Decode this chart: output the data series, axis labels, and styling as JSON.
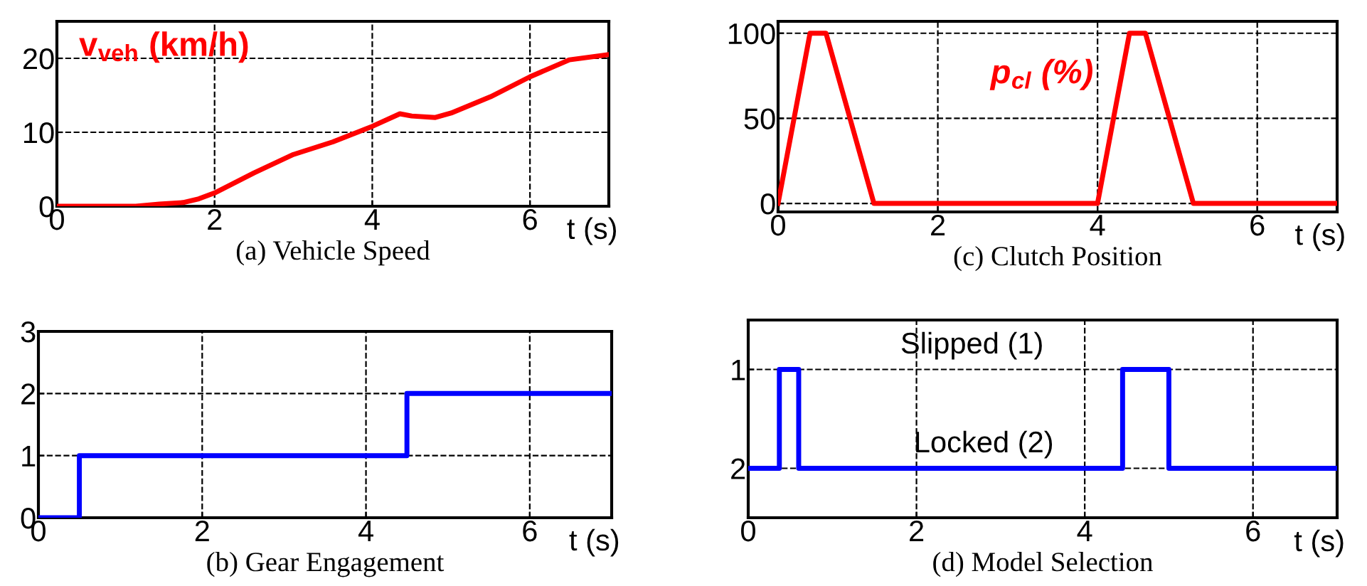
{
  "chart_data": [
    {
      "type": "line",
      "title": "(a) Vehicle Speed",
      "xlabel": "t (s)",
      "annotations": [
        "v$_{veh}$ (km/h)"
      ],
      "series": [
        {
          "color": "#ff0000",
          "x": [
            0,
            1,
            1.3,
            1.6,
            1.8,
            2,
            2.5,
            3,
            3.5,
            4,
            4.35,
            4.5,
            4.8,
            5,
            5.5,
            6,
            6.5,
            7
          ],
          "values": [
            0,
            0,
            0.3,
            0.5,
            1,
            1.8,
            4.5,
            7,
            8.7,
            10.8,
            12.5,
            12.2,
            12,
            12.6,
            14.8,
            17.5,
            19.8,
            20.5
          ]
        }
      ],
      "xlim": [
        0,
        7
      ],
      "xticks": [
        0,
        2,
        4,
        6
      ],
      "ylim": [
        0,
        25
      ],
      "yticks": [
        0,
        10,
        20
      ],
      "grid": true
    },
    {
      "type": "line",
      "title": "(c) Clutch Position",
      "xlabel": "t (s)",
      "annotations": [
        "p$_{cl}$ (%)"
      ],
      "series": [
        {
          "color": "#ff0000",
          "x": [
            0,
            0.4,
            0.6,
            1.2,
            4,
            4.4,
            4.6,
            5.2,
            7
          ],
          "values": [
            0,
            100,
            100,
            0,
            0,
            100,
            100,
            0,
            0
          ]
        }
      ],
      "xlim": [
        0,
        7
      ],
      "xticks": [
        0,
        2,
        4,
        6
      ],
      "ylim": [
        -5,
        107
      ],
      "yticks": [
        0,
        50,
        100
      ],
      "grid": true
    },
    {
      "type": "step",
      "title": "(b) Gear Engagement",
      "xlabel": "t (s)",
      "series": [
        {
          "color": "#0000ff",
          "x": [
            0,
            0.5,
            4.5,
            7
          ],
          "values": [
            0,
            1,
            2,
            2
          ]
        }
      ],
      "xlim": [
        0,
        7
      ],
      "xticks": [
        0,
        2,
        4,
        6
      ],
      "ylim": [
        0,
        3
      ],
      "yticks": [
        0,
        1,
        2,
        3
      ],
      "grid": true
    },
    {
      "type": "step",
      "title": "(d) Model Selection",
      "xlabel": "t (s)",
      "annotations": [
        "Slipped (1)",
        "Locked (2)"
      ],
      "series": [
        {
          "color": "#0000ff",
          "x": [
            0,
            0.37,
            0.6,
            4.45,
            5.0,
            7
          ],
          "values": [
            2,
            1,
            2,
            1,
            2,
            2
          ]
        }
      ],
      "xlim": [
        0,
        7
      ],
      "xticks": [
        0,
        2,
        4,
        6
      ],
      "ylim": [
        2.5,
        0.5
      ],
      "yticks": [
        1,
        2
      ],
      "grid": true
    }
  ]
}
